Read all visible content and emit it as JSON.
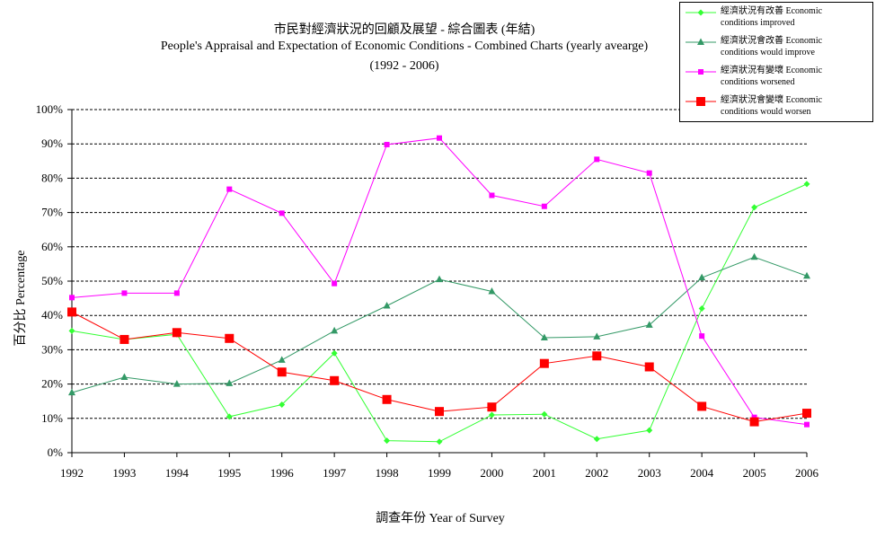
{
  "title": {
    "line1": "市民對經濟狀況的回顧及展望 - 綜合圖表 (年結)",
    "line2": "People's Appraisal and Expectation of Economic Conditions - Combined Charts  (yearly avearge)",
    "line3": "(1992 - 2006)"
  },
  "chart_data": {
    "type": "line",
    "x": [
      "1992",
      "1993",
      "1994",
      "1995",
      "1996",
      "1997",
      "1998",
      "1999",
      "2000",
      "2001",
      "2002",
      "2003",
      "2004",
      "2005",
      "2006"
    ],
    "xlabel": "調查年份 Year of Survey",
    "ylabel": "百分比 Percentage",
    "ylim": [
      0,
      100
    ],
    "yticks": [
      "0%",
      "10%",
      "20%",
      "30%",
      "40%",
      "50%",
      "60%",
      "70%",
      "80%",
      "90%",
      "100%"
    ],
    "grid": "horizontal dashed",
    "legend_position": "top-right",
    "series": [
      {
        "name": "經濟狀況有改善 Economic conditions improved",
        "legend_line1": "經濟狀況有改善 Economic",
        "legend_line2": "conditions improved",
        "color": "#33ff33",
        "marker": "diamond",
        "values": [
          35.5,
          33,
          34.5,
          10.5,
          14,
          29,
          3.5,
          3.2,
          11,
          11.2,
          4,
          6.5,
          42,
          71.5,
          78.3
        ]
      },
      {
        "name": "經濟狀況會改善 Economic conditions would improve",
        "legend_line1": "經濟狀況會改善 Economic",
        "legend_line2": "conditions would improve",
        "color": "#339966",
        "marker": "triangle",
        "values": [
          17.5,
          22,
          20,
          20.2,
          27,
          35.5,
          42.8,
          50.5,
          47,
          33.5,
          33.8,
          37.2,
          51,
          57,
          51.5
        ]
      },
      {
        "name": "經濟狀況有變壞 Economic conditions worsened",
        "legend_line1": "經濟狀況有變壞 Economic",
        "legend_line2": "conditions worsened",
        "color": "#ff00ff",
        "marker": "square",
        "values": [
          45.2,
          46.5,
          46.5,
          76.8,
          69.8,
          49.3,
          89.8,
          91.7,
          75,
          71.8,
          85.5,
          81.5,
          34,
          10.3,
          8.2
        ]
      },
      {
        "name": "經濟狀況會變壞 Economic conditions would worsen",
        "legend_line1": "經濟狀況會變壞 Economic",
        "legend_line2": "conditions would worsen",
        "color": "#ff0000",
        "marker": "square-large",
        "values": [
          41,
          33,
          35,
          33.3,
          23.5,
          21,
          15.5,
          12,
          13.3,
          26,
          28.2,
          25,
          13.5,
          9,
          11.5
        ]
      }
    ]
  }
}
